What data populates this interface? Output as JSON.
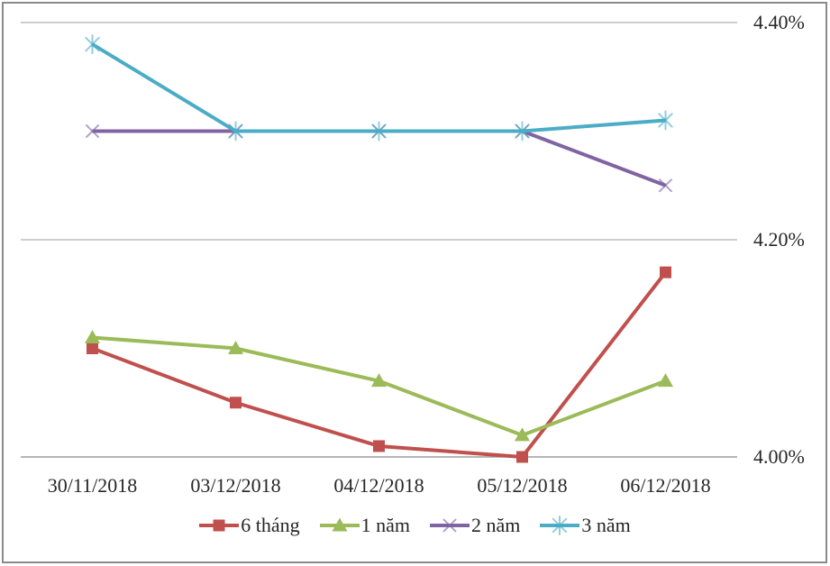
{
  "chart_data": {
    "type": "line",
    "title": "",
    "categories": [
      "30/11/2018",
      "03/12/2018",
      "04/12/2018",
      "05/12/2018",
      "06/12/2018"
    ],
    "series": [
      {
        "name": "6 tháng",
        "color": "#C0504D",
        "marker": "square",
        "values": [
          4.1,
          4.05,
          4.01,
          4.0,
          4.17
        ]
      },
      {
        "name": "1 năm",
        "color": "#9BBB59",
        "marker": "triangle",
        "values": [
          4.11,
          4.1,
          4.07,
          4.02,
          4.07
        ]
      },
      {
        "name": "2 năm",
        "color": "#8064A2",
        "marker": "x",
        "values": [
          4.3,
          4.3,
          4.3,
          4.3,
          4.25
        ]
      },
      {
        "name": "3 năm",
        "color": "#4BACC6",
        "marker": "asterisk",
        "values": [
          4.38,
          4.3,
          4.3,
          4.3,
          4.31
        ]
      }
    ],
    "y_ticks": [
      "4.40%",
      "4.20%",
      "4.00%"
    ],
    "ylim": [
      4.0,
      4.4
    ],
    "grid": true,
    "legend_position": "bottom",
    "gridline_color": "#BDBDBD",
    "axis_line_color": "#9D9D9D",
    "frame_color": "#8A8A8A",
    "text_color": "#262626"
  }
}
